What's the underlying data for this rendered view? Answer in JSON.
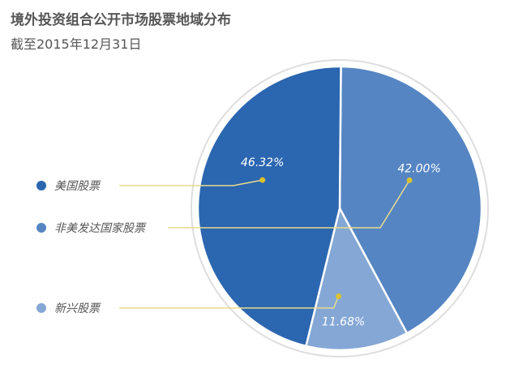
{
  "title": "境外投资组合公开市场股票地域分布",
  "subtitle": "截至2015年12月31日",
  "chart_data": {
    "type": "pie",
    "categories": [
      "美国股票",
      "非美发达国家股票",
      "新兴股票"
    ],
    "values": [
      46.32,
      42.0,
      11.68
    ],
    "labels": [
      "46.32%",
      "42.00%",
      "11.68%"
    ],
    "colors": [
      "#2b66b0",
      "#5585c3",
      "#84a7d5"
    ],
    "leader_color": "#e8dc8c",
    "dot_color": "#d9c22e",
    "title": "境外投资组合公开市场股票地域分布",
    "legend_placement": "left"
  }
}
